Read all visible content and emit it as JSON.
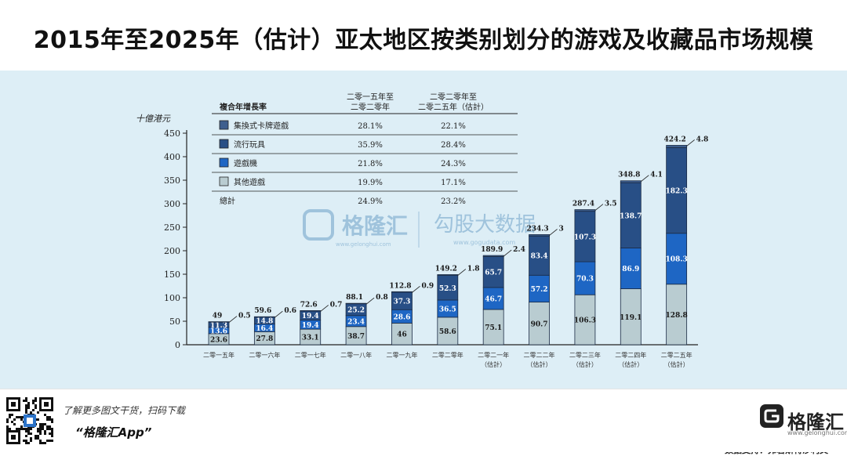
{
  "title": "2015年至2025年（估计）亚太地区按类别划分的游戏及收藏品市场规模",
  "source": "数据支持：弗若斯特沙利文",
  "watermark": {
    "brand": "格隆汇",
    "brand_url": "www.gelonghui.com",
    "partner": "勾股大数据",
    "partner_url": "www.gogudata.com"
  },
  "footer": {
    "tagline": "了解更多图文干货，扫码下载",
    "app_name": "“格隆汇App”",
    "logo_text": "格隆汇",
    "logo_url": "www.gelonghui.com"
  },
  "colors": {
    "cards": "#3e5f8e",
    "toys": "#284f86",
    "consoles": "#1e66c4",
    "others": "#b9ccd1",
    "panel": "#ddeef6"
  },
  "cagr_table": {
    "row_header": "複合年增長率",
    "col1_header": [
      "二零一五年至",
      "二零二零年"
    ],
    "col2_header": [
      "二零二零年至",
      "二零二五年（估計）"
    ],
    "rows": [
      {
        "label": "集換式卡牌遊戲",
        "c1": "28.1%",
        "c2": "22.1%",
        "color_key": "cards"
      },
      {
        "label": "流行玩具",
        "c1": "35.9%",
        "c2": "28.4%",
        "color_key": "toys"
      },
      {
        "label": "遊戲機",
        "c1": "21.8%",
        "c2": "24.3%",
        "color_key": "consoles"
      },
      {
        "label": "其他遊戲",
        "c1": "19.9%",
        "c2": "17.1%",
        "color_key": "others"
      }
    ],
    "total": {
      "label": "總計",
      "c1": "24.9%",
      "c2": "23.2%"
    }
  },
  "chart_data": {
    "type": "bar",
    "stacked": true,
    "ylabel": "十億港元",
    "ylim": [
      0,
      450
    ],
    "yticks": [
      0,
      50,
      100,
      150,
      200,
      250,
      300,
      350,
      400,
      450
    ],
    "categories": [
      "二零一五年",
      "二零一六年",
      "二零一七年",
      "二零一八年",
      "二零一九年",
      "二零二零年",
      "二零二一年（估計）",
      "二零二二年（估計）",
      "二零二三年（估計）",
      "二零二四年（估計）",
      "二零二五年（估計）"
    ],
    "category_lines": [
      [
        "二零一五年"
      ],
      [
        "二零一六年"
      ],
      [
        "二零一七年"
      ],
      [
        "二零一八年"
      ],
      [
        "二零一九年"
      ],
      [
        "二零二零年"
      ],
      [
        "二零二一年",
        "（估計）"
      ],
      [
        "二零二二年",
        "（估計）"
      ],
      [
        "二零二三年",
        "（估計）"
      ],
      [
        "二零二四年",
        "（估計）"
      ],
      [
        "二零二五年",
        "（估計）"
      ]
    ],
    "series": [
      {
        "name": "其他遊戲",
        "color_key": "others",
        "values": [
          23.6,
          27.8,
          33.1,
          38.7,
          46.0,
          58.6,
          75.1,
          90.7,
          106.3,
          119.1,
          128.8
        ]
      },
      {
        "name": "遊戲機",
        "color_key": "consoles",
        "values": [
          13.6,
          16.4,
          19.4,
          23.4,
          28.6,
          36.5,
          46.7,
          57.2,
          70.3,
          86.9,
          108.3
        ]
      },
      {
        "name": "流行玩具",
        "color_key": "toys",
        "values": [
          11.3,
          14.8,
          19.4,
          25.2,
          37.3,
          52.3,
          65.7,
          83.4,
          107.3,
          138.7,
          182.3
        ]
      },
      {
        "name": "集換式卡牌遊戲",
        "color_key": "cards",
        "values": [
          0.5,
          0.6,
          0.7,
          0.8,
          0.9,
          1.8,
          2.4,
          3.0,
          3.5,
          4.1,
          4.8
        ]
      }
    ],
    "totals": [
      49.0,
      59.6,
      72.6,
      88.1,
      112.8,
      149.2,
      189.9,
      234.3,
      287.4,
      348.8,
      424.2
    ]
  }
}
